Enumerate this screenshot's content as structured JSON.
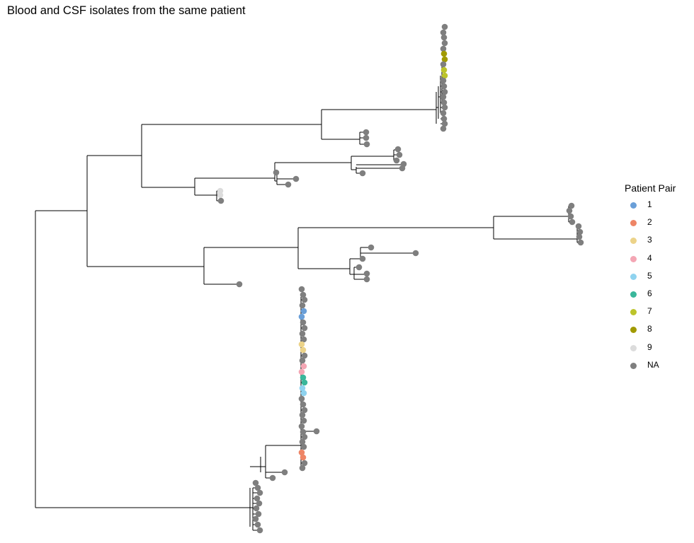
{
  "title": "Blood and CSF isolates from the same patient",
  "legend": {
    "title": "Patient Pair",
    "items": [
      {
        "label": "1",
        "color": "#6a9fd8"
      },
      {
        "label": "2",
        "color": "#ee8566"
      },
      {
        "label": "3",
        "color": "#ecd389"
      },
      {
        "label": "4",
        "color": "#f4a6b4"
      },
      {
        "label": "5",
        "color": "#8fd3ef"
      },
      {
        "label": "6",
        "color": "#3ab79b"
      },
      {
        "label": "7",
        "color": "#bcc42b"
      },
      {
        "label": "8",
        "color": "#a19a00"
      },
      {
        "label": "9",
        "color": "#dcdcdc"
      },
      {
        "label": "NA",
        "color": "#7f7f7f"
      }
    ]
  },
  "colors": {
    "branch": "#000000",
    "na_tip": "#7f7f7f"
  }
}
